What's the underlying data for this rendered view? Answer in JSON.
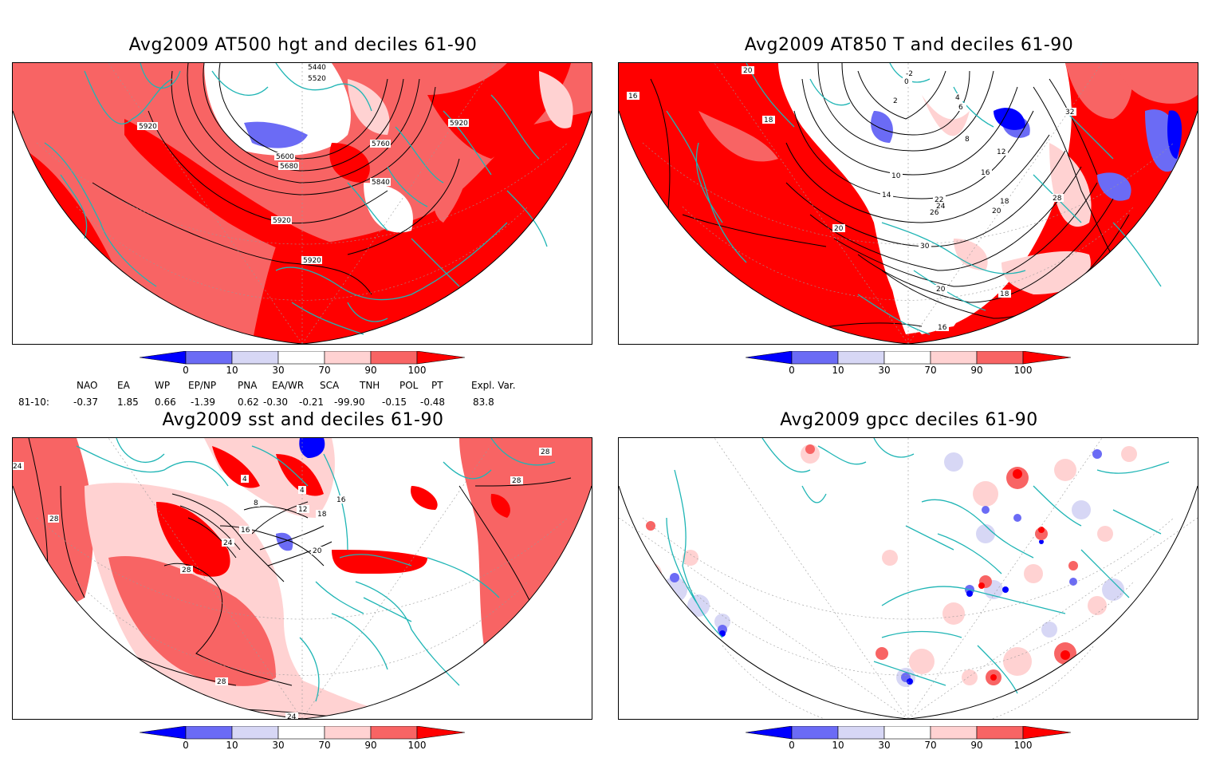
{
  "panels": [
    {
      "title": "Avg2009 AT500 hgt and deciles 61-90",
      "contour_labels": [
        "5440",
        "5520",
        "5600",
        "5680",
        "5760",
        "5840",
        "5920",
        "5920",
        "5920",
        "5920"
      ]
    },
    {
      "title": "Avg2009 AT850 T and deciles 61-90",
      "contour_labels": [
        "20",
        "-2",
        "0",
        "2",
        "4",
        "6",
        "8",
        "10",
        "12",
        "14",
        "16",
        "18",
        "20",
        "22",
        "24",
        "26",
        "28",
        "30",
        "32",
        "16",
        "18",
        "20",
        "18",
        "16",
        "20"
      ]
    },
    {
      "title": "Avg2009 sst and deciles 61-90",
      "contour_labels": [
        "24",
        "28",
        "4",
        "8",
        "12",
        "16",
        "20",
        "24",
        "28",
        "28",
        "28",
        "24",
        "18",
        "16",
        "4",
        "28"
      ]
    },
    {
      "title": "Avg2009 gpcc deciles 61-90",
      "contour_labels": []
    }
  ],
  "colorbar": {
    "ticks": [
      "0",
      "10",
      "30",
      "70",
      "90",
      "100"
    ],
    "colors": [
      "#0000ff",
      "#6b6bf5",
      "#d7d7f5",
      "#ffffff",
      "#ffd2d2",
      "#f86464",
      "#ff0000"
    ]
  },
  "teleconnections": {
    "headers": [
      "NAO",
      "EA",
      "WP",
      "EP/NP",
      "PNA",
      "EA/WR",
      "SCA",
      "TNH",
      "POL",
      "PT",
      "Expl. Var."
    ],
    "row_label": "81-10:",
    "values": [
      "-0.37",
      "1.85",
      "0.66",
      "-1.39",
      "0.62",
      "-0.30",
      "-0.21",
      "-99.90",
      "-0.15",
      "-0.48",
      "83.8"
    ]
  },
  "map_colors": {
    "coast": "#1fb5b5",
    "red": "#ff0000",
    "mid_red": "#f86464",
    "light_red": "#ffd2d2",
    "light_blue": "#d7d7f5",
    "mid_blue": "#6b6bf5",
    "blue": "#0000ff"
  }
}
